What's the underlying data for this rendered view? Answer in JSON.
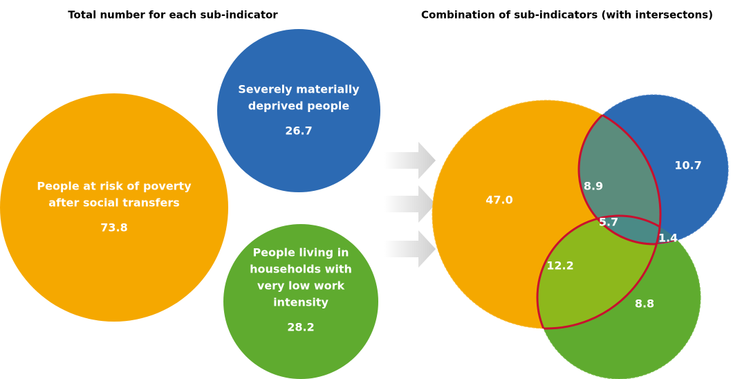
{
  "left": {
    "title": "Total number for each sub-indicator",
    "circles": [
      {
        "label": [
          "People at risk of poverty",
          "after social transfers"
        ],
        "value": "73.8"
      },
      {
        "label": [
          "Severely materially",
          "deprived people"
        ],
        "value": "26.7"
      },
      {
        "label": [
          "People living in",
          "households with",
          "very low work",
          "intensity"
        ],
        "value": "28.2"
      }
    ]
  },
  "right": {
    "title": "Combination of sub-indicators (with intersectons)",
    "regions": {
      "poverty_only": "47.0",
      "deprived_only": "10.7",
      "work_only": "8.8",
      "poverty_deprived": "8.9",
      "poverty_work": "12.2",
      "deprived_work": "1.4",
      "all_three": "5.7"
    }
  }
}
